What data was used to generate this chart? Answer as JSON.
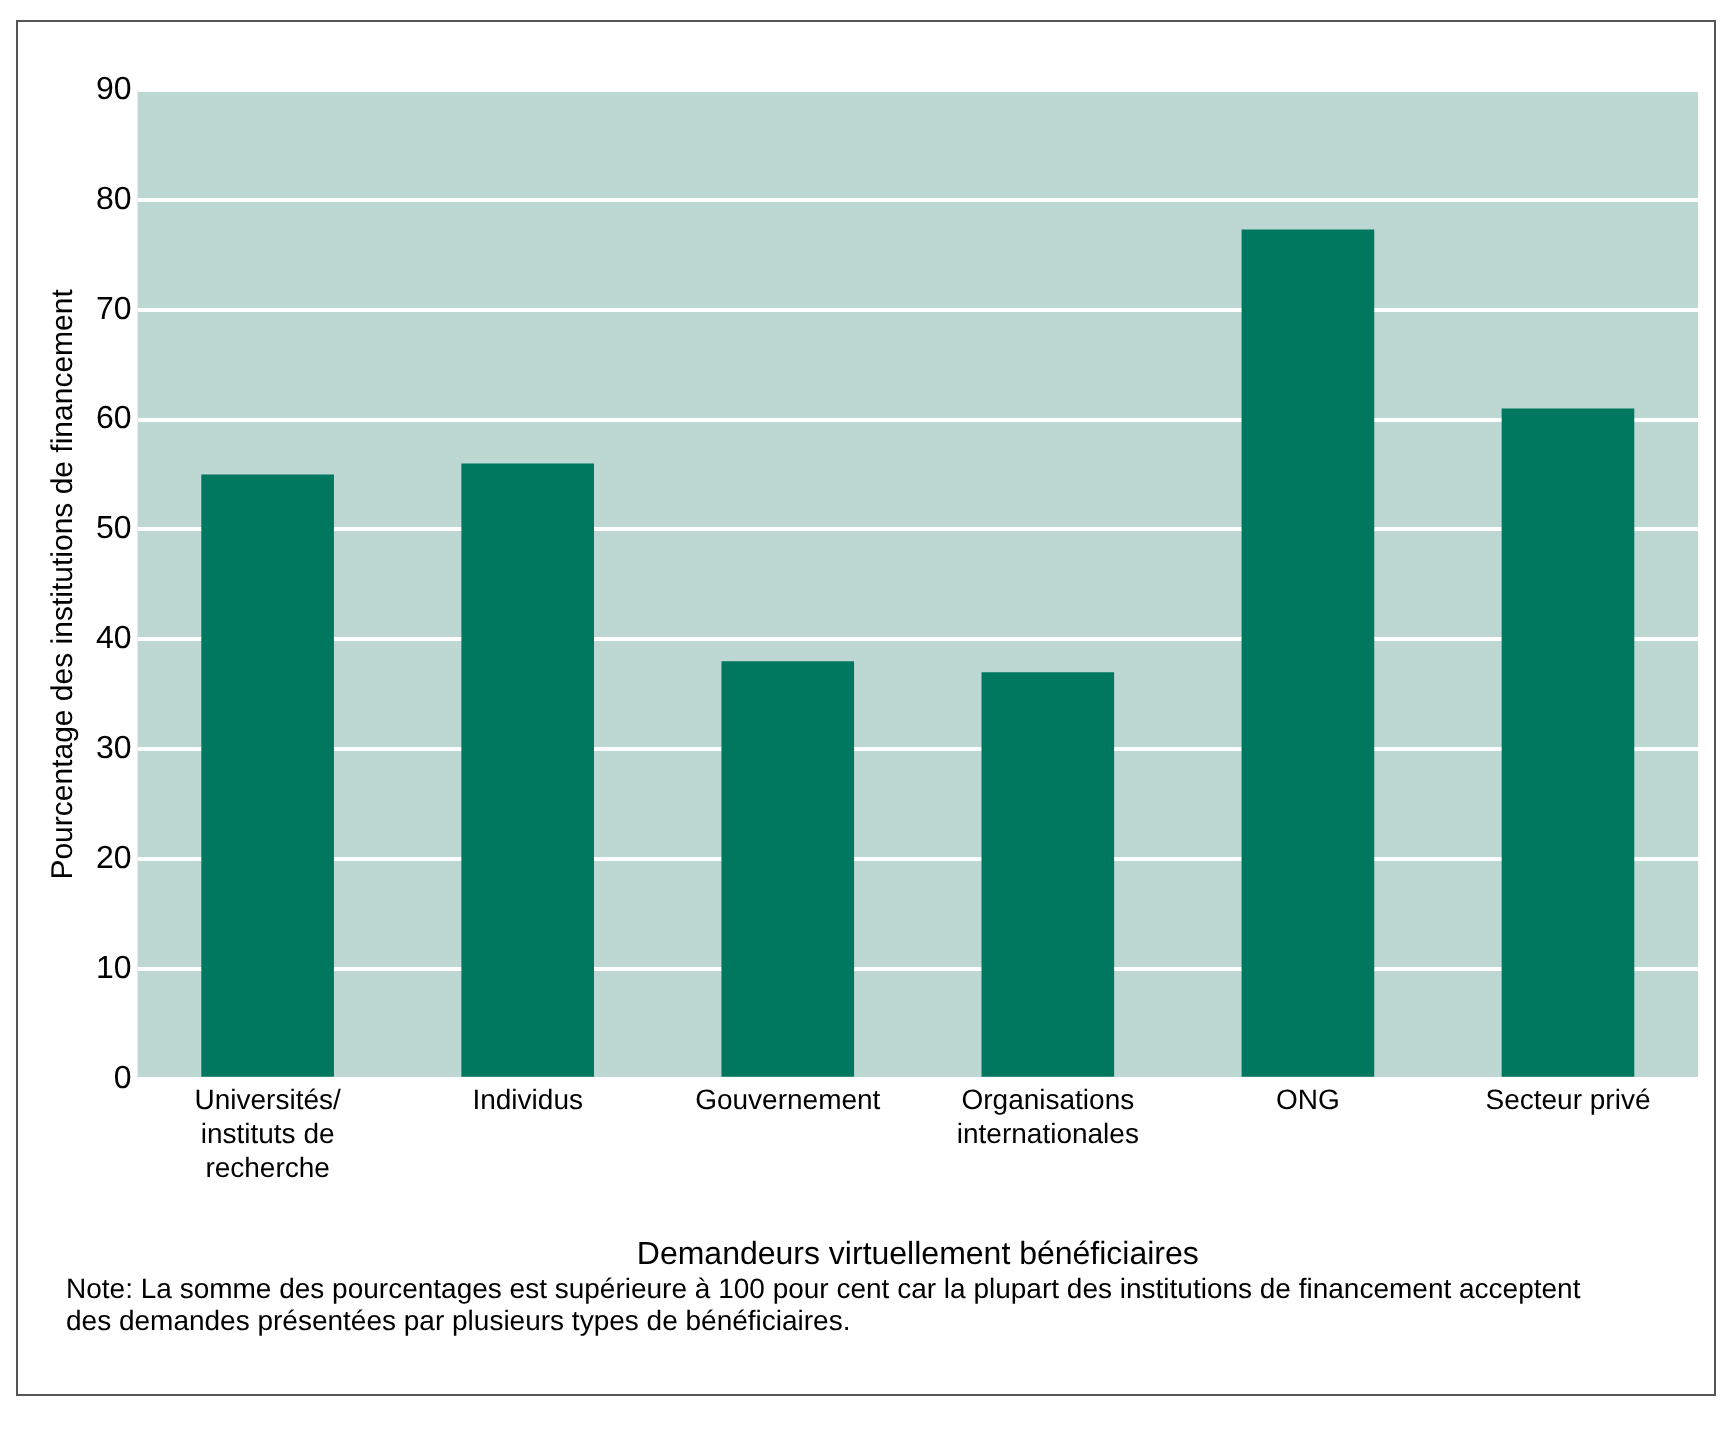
{
  "chart_data": {
    "type": "bar",
    "xlabel": "Demandeurs virtuellement bénéficiaires",
    "ylabel": "Pourcentage des institutions de financement",
    "categories": [
      "Universités/ instituts de recherche",
      "Individus",
      "Gouvernement",
      "Organisations internationales",
      "ONG",
      "Secteur privé"
    ],
    "values": [
      55,
      56,
      38,
      37,
      77.3,
      61
    ],
    "color": "#00775f",
    "ylim": [
      0,
      90
    ],
    "yticks": [
      0,
      10,
      20,
      30,
      40,
      50,
      60,
      70,
      80,
      90
    ],
    "grid": "y",
    "annotations": [
      "Note: La somme des pourcentages est supérieure à 100 pour cent car la plupart des institutions de financement acceptent des demandes présentées par plusieurs types de bénéficiaires."
    ]
  }
}
